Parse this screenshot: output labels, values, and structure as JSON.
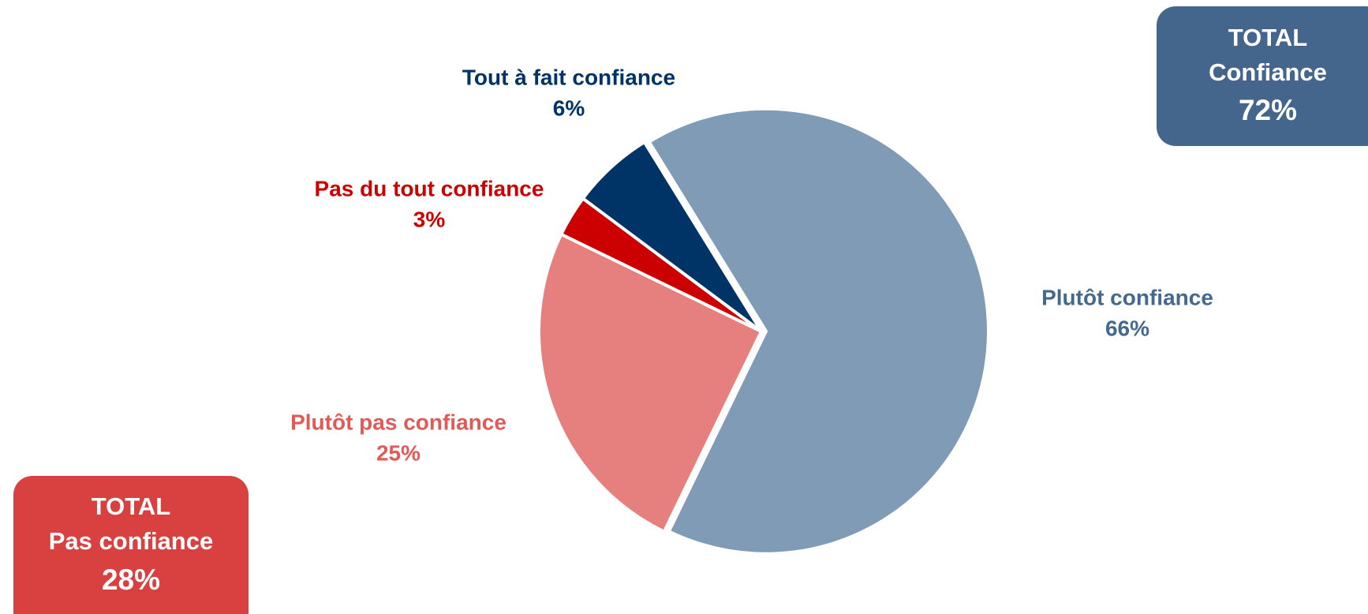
{
  "chart_data": {
    "type": "pie",
    "categories": [
      "Plutôt confiance",
      "Plutôt pas confiance",
      "Pas du tout confiance",
      "Tout à fait confiance"
    ],
    "values": [
      66,
      25,
      3,
      6
    ],
    "value_labels": [
      "66%",
      "25%",
      "3%",
      "6%"
    ],
    "colors": [
      "#7f9bb5",
      "#e5807e",
      "#cc0000",
      "#003366"
    ],
    "label_colors": [
      "#44698f",
      "#e05a58",
      "#cc0000",
      "#003366"
    ]
  },
  "totals": [
    {
      "title": "TOTAL",
      "label": "Confiance",
      "value": "72%"
    },
    {
      "title": "TOTAL",
      "label": "Pas confiance",
      "value": "28%"
    }
  ]
}
